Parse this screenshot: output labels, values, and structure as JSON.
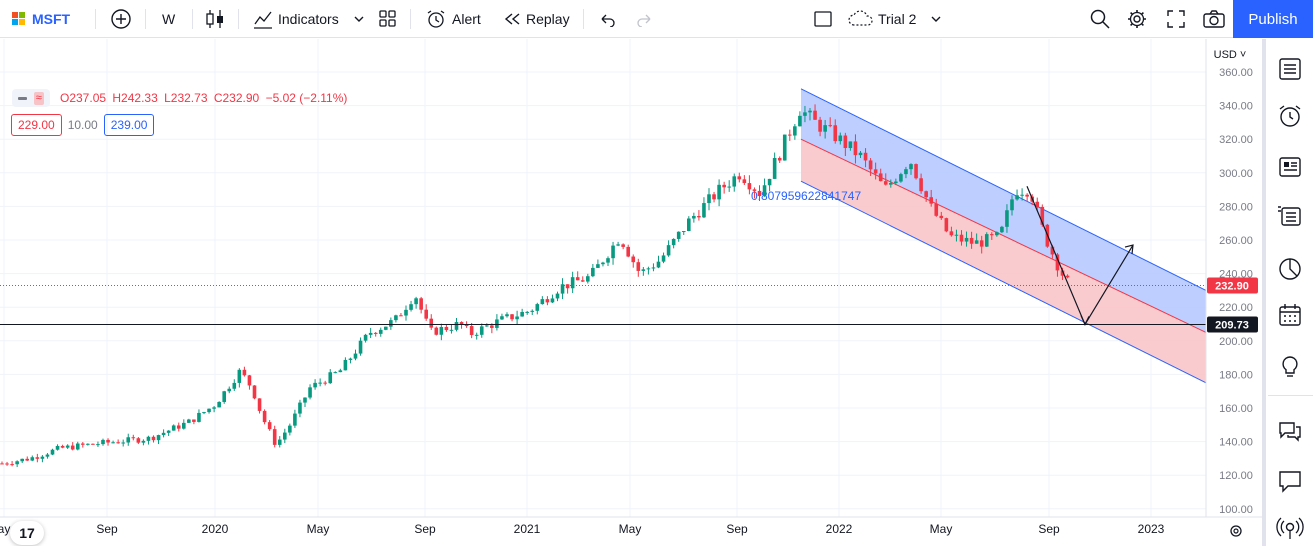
{
  "toolbar": {
    "symbol": "MSFT",
    "interval": "W",
    "indicators_label": "Indicators",
    "alert_label": "Alert",
    "replay_label": "Replay",
    "layout_name": "Trial 2",
    "publish_label": "Publish"
  },
  "legend": {
    "open": "O237.05",
    "high": "H242.33",
    "low": "L232.73",
    "close": "C232.90",
    "change": "−5.02 (−2.11%)"
  },
  "inputs": {
    "low_value": "229.00",
    "mid_value": "10.00",
    "high_value": "239.00"
  },
  "chart": {
    "currency": "USD",
    "price_labels": [
      "360.00",
      "340.00",
      "320.00",
      "300.00",
      "280.00",
      "260.00",
      "240.00",
      "220.00",
      "200.00",
      "180.00",
      "160.00",
      "140.00",
      "120.00",
      "100.00"
    ],
    "time_labels": [
      "ay",
      "Sep",
      "2020",
      "May",
      "Sep",
      "2021",
      "May",
      "Sep",
      "2022",
      "May",
      "Sep",
      "2023"
    ],
    "last_price": "232.90",
    "hline_price": "209.73",
    "channel_label": "0.807959622841747",
    "colors": {
      "up": "#089981",
      "down": "#f23645",
      "channel_line": "#2962ff",
      "upper_fill": "#b3c6ff",
      "lower_fill": "#f9c2c5"
    }
  },
  "chart_data": {
    "type": "candlestick",
    "symbol": "MSFT",
    "interval": "W",
    "ylim": [
      100,
      360
    ],
    "last_close": 232.9,
    "horizontal_line": 209.73,
    "x": [
      "2019-05",
      "2019-09",
      "2020-01",
      "2020-05",
      "2020-09",
      "2021-01",
      "2021-05",
      "2021-09",
      "2022-01",
      "2022-05",
      "2022-09",
      "2023-01"
    ],
    "close_approx": [
      125,
      138,
      160,
      183,
      210,
      225,
      250,
      295,
      320,
      270,
      250,
      232.9
    ]
  }
}
